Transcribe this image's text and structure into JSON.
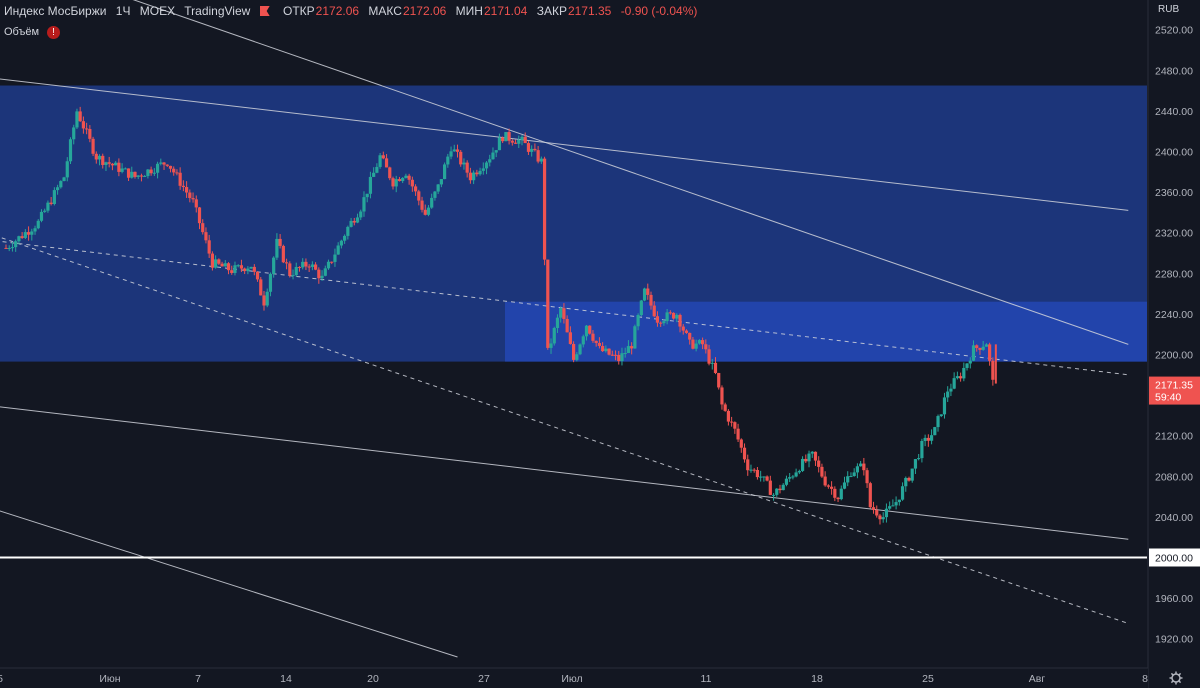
{
  "legend": {
    "symbol": "Индекс МосБиржи",
    "interval": "1Ч",
    "exchange": "MOEX",
    "source": "TradingView",
    "open_label": "ОТКР",
    "open": "2172.06",
    "high_label": "МАКС",
    "high": "2172.06",
    "low_label": "МИН",
    "low": "2171.04",
    "close_label": "ЗАКР",
    "close": "2171.35",
    "change": "-0.90 (-0.04%)"
  },
  "volume_label": "Объём",
  "volume_warning": "!",
  "currency": "RUB",
  "last_price": "2171.35",
  "countdown": "59:40",
  "settings_icon": "gear-icon",
  "colors": {
    "background": "#131722",
    "up": "#26a69a",
    "down": "#ef5350",
    "zone": "#1e3b8a",
    "zone_highlight": "#2446b0",
    "trendline": "#d1d4dc"
  },
  "chart_data": {
    "type": "candlestick",
    "title": "Индекс МосБиржи · 1Ч · MOEX",
    "ylim": [
      1900,
      2530
    ],
    "y_ticks": [
      2520,
      2480,
      2440,
      2400,
      2360,
      2320,
      2280,
      2240,
      2200,
      2160,
      2120,
      2080,
      2040,
      2000,
      1960,
      1920
    ],
    "y_labels": [
      "2520.00",
      "2480.00",
      "2440.00",
      "2400.00",
      "2360.00",
      "2320.00",
      "2280.00",
      "2240.00",
      "2200.00",
      "2160.00",
      "2120.00",
      "2080.00",
      "2040.00",
      "2000.00",
      "1960.00",
      "1920.00"
    ],
    "x_labels": [
      "5",
      "Июн",
      "7",
      "14",
      "20",
      "27",
      "Июл",
      "11",
      "18",
      "25",
      "Авг",
      "8"
    ],
    "price_path": [
      [
        0,
        2305
      ],
      [
        5,
        2330
      ],
      [
        9,
        2375
      ],
      [
        11,
        2440
      ],
      [
        14,
        2395
      ],
      [
        20,
        2375
      ],
      [
        25,
        2390
      ],
      [
        29,
        2350
      ],
      [
        32,
        2290
      ],
      [
        35,
        2283
      ],
      [
        38,
        2288
      ],
      [
        40,
        2252
      ],
      [
        42,
        2310
      ],
      [
        44,
        2280
      ],
      [
        47,
        2290
      ],
      [
        49,
        2275
      ],
      [
        51,
        2300
      ],
      [
        53,
        2325
      ],
      [
        55,
        2345
      ],
      [
        58,
        2395
      ],
      [
        60,
        2370
      ],
      [
        62,
        2380
      ],
      [
        65,
        2338
      ],
      [
        67,
        2365
      ],
      [
        69,
        2405
      ],
      [
        72,
        2375
      ],
      [
        75,
        2395
      ],
      [
        77,
        2415
      ],
      [
        80,
        2410
      ],
      [
        83,
        2390
      ],
      [
        84,
        2202
      ],
      [
        86,
        2245
      ],
      [
        88,
        2195
      ],
      [
        90,
        2230
      ],
      [
        92,
        2205
      ],
      [
        95,
        2195
      ],
      [
        97,
        2210
      ],
      [
        99,
        2262
      ],
      [
        101,
        2235
      ],
      [
        104,
        2240
      ],
      [
        106,
        2210
      ],
      [
        108,
        2210
      ],
      [
        110,
        2180
      ],
      [
        111,
        2150
      ],
      [
        113,
        2125
      ],
      [
        115,
        2090
      ],
      [
        117,
        2080
      ],
      [
        119,
        2062
      ],
      [
        121,
        2075
      ],
      [
        123,
        2090
      ],
      [
        125,
        2100
      ],
      [
        127,
        2075
      ],
      [
        129,
        2060
      ],
      [
        131,
        2085
      ],
      [
        133,
        2090
      ],
      [
        134,
        2050
      ],
      [
        136,
        2040
      ],
      [
        138,
        2055
      ],
      [
        140,
        2080
      ],
      [
        142,
        2110
      ],
      [
        144,
        2125
      ],
      [
        146,
        2165
      ],
      [
        148,
        2180
      ],
      [
        150,
        2205
      ],
      [
        152,
        2212
      ],
      [
        153,
        2172
      ]
    ],
    "zones": [
      {
        "from_x": 0,
        "to_x": 174,
        "y_low": 2193,
        "y_high": 2465
      },
      {
        "from_x": 77,
        "to_x": 174,
        "y_low": 2193,
        "y_high": 2252
      }
    ],
    "trendlines": [
      {
        "style": "solid",
        "x1": -3,
        "y1": 2473,
        "x2": 174,
        "y2": 2342
      },
      {
        "style": "solid",
        "x1": 15,
        "y1": 2560,
        "x2": 174,
        "y2": 2210
      },
      {
        "style": "solid",
        "x1": -3,
        "y1": 2150,
        "x2": 174,
        "y2": 2018
      },
      {
        "style": "solid",
        "x1": -3,
        "y1": 2050,
        "x2": 70,
        "y2": 1902
      },
      {
        "style": "dashed",
        "x1": -3,
        "y1": 2313,
        "x2": 174,
        "y2": 2180
      },
      {
        "style": "dashed",
        "x1": -3,
        "y1": 2320,
        "x2": 174,
        "y2": 1935
      }
    ],
    "horizontal_level": 2000,
    "grid": false
  }
}
